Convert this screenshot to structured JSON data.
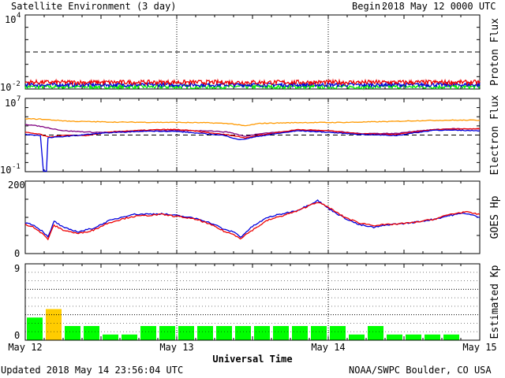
{
  "header": {
    "title": "Satellite Environment (3 day)",
    "begin_label": "Begin:",
    "begin_value": "2018 May 12 0000 UTC"
  },
  "footer": {
    "updated": "Updated 2018 May 14 23:56:04 UTC",
    "credit": "NOAA/SWPC Boulder, CO USA"
  },
  "colors": {
    "red": "#ee0000",
    "blue": "#0000dd",
    "green": "#00ee00",
    "orange": "#ff9900",
    "purple": "#800080",
    "yellow": "#ffcc00",
    "kp_green": "#00ff00"
  },
  "chart_data": [
    {
      "type": "line",
      "name": "proton_flux",
      "ylabel": "Proton Flux",
      "yscale": "log",
      "ylim": [
        0.01,
        10000
      ],
      "ytick_labels": {
        "top": "10",
        "top_exp": "4",
        "bottom": "10",
        "bottom_exp": "-2"
      },
      "threshold": 10,
      "x_days": [
        0,
        3
      ],
      "series": [
        {
          "color": "red",
          "level": 0.035,
          "noise": 0.35
        },
        {
          "color": "blue",
          "level": 0.022,
          "noise": 0.3
        },
        {
          "color": "green",
          "level": 0.015,
          "noise": 0.3
        }
      ]
    },
    {
      "type": "line",
      "name": "electron_flux",
      "ylabel": "Electron Flux",
      "yscale": "log",
      "ylim": [
        0.1,
        10000000
      ],
      "ytick_labels": {
        "top": "10",
        "top_exp": "7",
        "bottom": "10",
        "bottom_exp": "-1"
      },
      "threshold": 1000,
      "x_days": [
        0,
        3
      ],
      "series": [
        {
          "color": "orange",
          "points": [
            [
              0,
              60000
            ],
            [
              0.1,
              55000
            ],
            [
              0.3,
              32000
            ],
            [
              0.6,
              26000
            ],
            [
              1.0,
              24000
            ],
            [
              1.2,
              22000
            ],
            [
              1.35,
              18000
            ],
            [
              1.45,
              10000
            ],
            [
              1.55,
              19000
            ],
            [
              1.8,
              23000
            ],
            [
              2.1,
              24000
            ],
            [
              2.4,
              30000
            ],
            [
              2.6,
              38000
            ],
            [
              2.8,
              42000
            ],
            [
              3,
              42000
            ]
          ]
        },
        {
          "color": "purple",
          "points": [
            [
              0,
              15000
            ],
            [
              0.1,
              9000
            ],
            [
              0.25,
              3000
            ],
            [
              0.45,
              2000
            ],
            [
              0.6,
              2000
            ],
            [
              0.9,
              3000
            ],
            [
              1.2,
              3000
            ],
            [
              1.35,
              2000
            ],
            [
              1.45,
              700
            ],
            [
              1.55,
              1500
            ],
            [
              1.8,
              3000
            ],
            [
              2.0,
              3000
            ],
            [
              2.2,
              1500
            ],
            [
              2.45,
              1500
            ],
            [
              2.6,
              3000
            ],
            [
              2.8,
              5000
            ],
            [
              3,
              4500
            ]
          ]
        },
        {
          "color": "red",
          "points": [
            [
              0,
              2000
            ],
            [
              0.1,
              1200
            ],
            [
              0.15,
              600
            ],
            [
              0.25,
              900
            ],
            [
              0.4,
              900
            ],
            [
              0.6,
              2500
            ],
            [
              0.9,
              4000
            ],
            [
              1.0,
              4000
            ],
            [
              1.1,
              3000
            ],
            [
              1.25,
              1500
            ],
            [
              1.35,
              1000
            ],
            [
              1.45,
              500
            ],
            [
              1.55,
              1000
            ],
            [
              1.8,
              4000
            ],
            [
              2.0,
              3000
            ],
            [
              2.2,
              1400
            ],
            [
              2.45,
              1200
            ],
            [
              2.7,
              4000
            ],
            [
              3,
              5000
            ]
          ]
        },
        {
          "color": "blue",
          "points": [
            [
              0,
              1200
            ],
            [
              0.1,
              900
            ],
            [
              0.12,
              0.11
            ],
            [
              0.14,
              0.11
            ],
            [
              0.15,
              500
            ],
            [
              0.3,
              800
            ],
            [
              0.5,
              1600
            ],
            [
              0.8,
              2800
            ],
            [
              1.0,
              2500
            ],
            [
              1.1,
              1800
            ],
            [
              1.3,
              1000
            ],
            [
              1.42,
              300
            ],
            [
              1.55,
              800
            ],
            [
              1.8,
              3000
            ],
            [
              2.0,
              2000
            ],
            [
              2.2,
              1200
            ],
            [
              2.45,
              900
            ],
            [
              2.7,
              3500
            ],
            [
              3,
              3000
            ]
          ]
        }
      ]
    },
    {
      "type": "line",
      "name": "goes_hp",
      "ylabel": "GOES Hp",
      "ylim": [
        0,
        200
      ],
      "ytick_labels": [
        "0",
        "200"
      ],
      "x_days": [
        0,
        3
      ],
      "series": [
        {
          "color": "blue",
          "points": [
            [
              0,
              85
            ],
            [
              0.05,
              80
            ],
            [
              0.12,
              60
            ],
            [
              0.15,
              45
            ],
            [
              0.17,
              65
            ],
            [
              0.19,
              90
            ],
            [
              0.25,
              72
            ],
            [
              0.35,
              60
            ],
            [
              0.45,
              70
            ],
            [
              0.55,
              90
            ],
            [
              0.7,
              108
            ],
            [
              0.9,
              110
            ],
            [
              1.05,
              102
            ],
            [
              1.15,
              95
            ],
            [
              1.25,
              80
            ],
            [
              1.32,
              65
            ],
            [
              1.38,
              60
            ],
            [
              1.42,
              45
            ],
            [
              1.5,
              75
            ],
            [
              1.6,
              100
            ],
            [
              1.7,
              110
            ],
            [
              1.8,
              120
            ],
            [
              1.9,
              140
            ],
            [
              1.93,
              147
            ],
            [
              2.0,
              125
            ],
            [
              2.1,
              100
            ],
            [
              2.2,
              80
            ],
            [
              2.3,
              72
            ],
            [
              2.4,
              80
            ],
            [
              2.55,
              85
            ],
            [
              2.7,
              95
            ],
            [
              2.8,
              105
            ],
            [
              2.9,
              112
            ],
            [
              3,
              100
            ]
          ]
        },
        {
          "color": "red",
          "points": [
            [
              0,
              80
            ],
            [
              0.05,
              75
            ],
            [
              0.12,
              52
            ],
            [
              0.15,
              40
            ],
            [
              0.17,
              60
            ],
            [
              0.19,
              78
            ],
            [
              0.25,
              65
            ],
            [
              0.35,
              55
            ],
            [
              0.45,
              65
            ],
            [
              0.55,
              85
            ],
            [
              0.7,
              102
            ],
            [
              0.9,
              108
            ],
            [
              1.05,
              100
            ],
            [
              1.15,
              92
            ],
            [
              1.25,
              75
            ],
            [
              1.32,
              60
            ],
            [
              1.38,
              52
            ],
            [
              1.42,
              42
            ],
            [
              1.5,
              65
            ],
            [
              1.6,
              92
            ],
            [
              1.7,
              105
            ],
            [
              1.8,
              118
            ],
            [
              1.9,
              138
            ],
            [
              1.93,
              142
            ],
            [
              2.0,
              128
            ],
            [
              2.1,
              102
            ],
            [
              2.2,
              85
            ],
            [
              2.3,
              78
            ],
            [
              2.4,
              80
            ],
            [
              2.55,
              85
            ],
            [
              2.7,
              95
            ],
            [
              2.8,
              108
            ],
            [
              2.9,
              115
            ],
            [
              3,
              108
            ]
          ]
        }
      ]
    },
    {
      "type": "bar",
      "name": "estimated_kp",
      "ylabel": "Estimated Kp",
      "ylim": [
        0,
        9
      ],
      "ytick_labels": [
        "0",
        "9"
      ],
      "values": [
        2.67,
        3.67,
        1.67,
        1.67,
        0.67,
        0.67,
        1.67,
        1.67,
        1.67,
        1.67,
        1.67,
        1.67,
        1.67,
        1.67,
        1.67,
        1.67,
        1.67,
        0.67,
        1.67,
        0.67,
        0.67,
        0.67,
        0.67,
        0
      ],
      "colors": [
        "kp_green",
        "yellow",
        "kp_green",
        "kp_green",
        "kp_green",
        "kp_green",
        "kp_green",
        "kp_green",
        "kp_green",
        "kp_green",
        "kp_green",
        "kp_green",
        "kp_green",
        "kp_green",
        "kp_green",
        "kp_green",
        "kp_green",
        "kp_green",
        "kp_green",
        "kp_green",
        "kp_green",
        "kp_green",
        "kp_green",
        "kp_green"
      ]
    }
  ],
  "xaxis": {
    "label": "Universal Time",
    "ticks": [
      "May 12",
      "May 13",
      "May 14",
      "May 15"
    ]
  }
}
